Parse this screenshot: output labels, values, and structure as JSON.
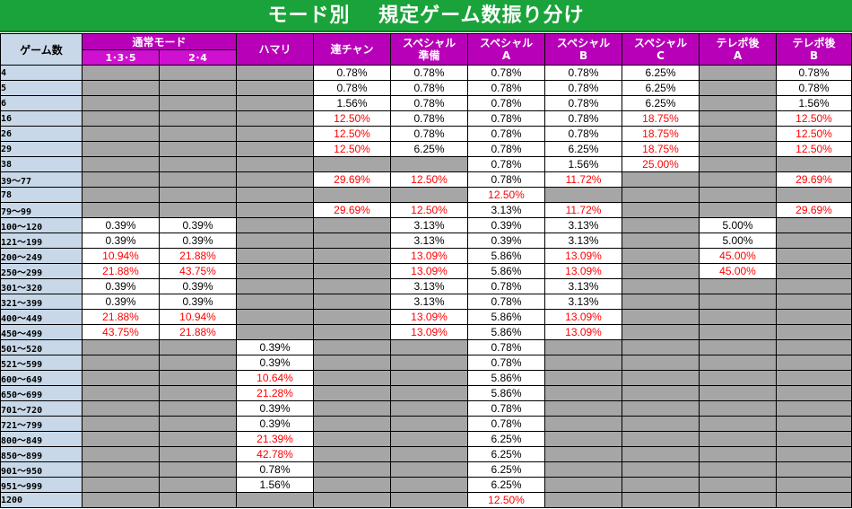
{
  "title": "モード別　 規定ゲーム数振り分け",
  "header": {
    "game_label": "ゲーム数",
    "normal_mode": "通常モード",
    "normal_sub": [
      "1･3･5",
      "2･4"
    ],
    "columns": [
      {
        "top": "ハマリ",
        "bottom": ""
      },
      {
        "top": "連チャン",
        "bottom": ""
      },
      {
        "top": "スペシャル",
        "bottom": "準備"
      },
      {
        "top": "スペシャル",
        "bottom": "A"
      },
      {
        "top": "スペシャル",
        "bottom": "B"
      },
      {
        "top": "スペシャル",
        "bottom": "C"
      },
      {
        "top": "テレポ後",
        "bottom": "A"
      },
      {
        "top": "テレポ後",
        "bottom": "B"
      }
    ]
  },
  "rows": [
    {
      "label": "4",
      "cells": [
        null,
        null,
        null,
        "0.78%",
        "0.78%",
        "0.78%",
        "0.78%",
        "6.25%",
        null,
        "0.78%"
      ]
    },
    {
      "label": "5",
      "cells": [
        null,
        null,
        null,
        "0.78%",
        "0.78%",
        "0.78%",
        "0.78%",
        "6.25%",
        null,
        "0.78%"
      ]
    },
    {
      "label": "6",
      "cells": [
        null,
        null,
        null,
        "1.56%",
        "0.78%",
        "0.78%",
        "0.78%",
        "6.25%",
        null,
        "1.56%"
      ]
    },
    {
      "label": "16",
      "cells": [
        null,
        null,
        null,
        "12.50%",
        "0.78%",
        "0.78%",
        "0.78%",
        "18.75%",
        null,
        "12.50%"
      ]
    },
    {
      "label": "26",
      "cells": [
        null,
        null,
        null,
        "12.50%",
        "0.78%",
        "0.78%",
        "0.78%",
        "18.75%",
        null,
        "12.50%"
      ]
    },
    {
      "label": "29",
      "cells": [
        null,
        null,
        null,
        "12.50%",
        "6.25%",
        "0.78%",
        "6.25%",
        "18.75%",
        null,
        "12.50%"
      ]
    },
    {
      "label": "38",
      "cells": [
        null,
        null,
        null,
        null,
        null,
        "0.78%",
        "1.56%",
        "25.00%",
        null,
        null
      ]
    },
    {
      "label": "39〜77",
      "cells": [
        null,
        null,
        null,
        "29.69%",
        "12.50%",
        "0.78%",
        "11.72%",
        null,
        null,
        "29.69%"
      ]
    },
    {
      "label": "78",
      "cells": [
        null,
        null,
        null,
        null,
        null,
        "12.50%",
        null,
        null,
        null,
        null
      ]
    },
    {
      "label": "79〜99",
      "cells": [
        null,
        null,
        null,
        "29.69%",
        "12.50%",
        "3.13%",
        "11.72%",
        null,
        null,
        "29.69%"
      ]
    },
    {
      "label": "100〜120",
      "cells": [
        "0.39%",
        "0.39%",
        null,
        null,
        "3.13%",
        "0.39%",
        "3.13%",
        null,
        "5.00%",
        null
      ]
    },
    {
      "label": "121〜199",
      "cells": [
        "0.39%",
        "0.39%",
        null,
        null,
        "3.13%",
        "0.39%",
        "3.13%",
        null,
        "5.00%",
        null
      ]
    },
    {
      "label": "200〜249",
      "cells": [
        "10.94%",
        "21.88%",
        null,
        null,
        "13.09%",
        "5.86%",
        "13.09%",
        null,
        "45.00%",
        null
      ]
    },
    {
      "label": "250〜299",
      "cells": [
        "21.88%",
        "43.75%",
        null,
        null,
        "13.09%",
        "5.86%",
        "13.09%",
        null,
        "45.00%",
        null
      ]
    },
    {
      "label": "301〜320",
      "cells": [
        "0.39%",
        "0.39%",
        null,
        null,
        "3.13%",
        "0.78%",
        "3.13%",
        null,
        null,
        null
      ]
    },
    {
      "label": "321〜399",
      "cells": [
        "0.39%",
        "0.39%",
        null,
        null,
        "3.13%",
        "0.78%",
        "3.13%",
        null,
        null,
        null
      ]
    },
    {
      "label": "400〜449",
      "cells": [
        "21.88%",
        "10.94%",
        null,
        null,
        "13.09%",
        "5.86%",
        "13.09%",
        null,
        null,
        null
      ]
    },
    {
      "label": "450〜499",
      "cells": [
        "43.75%",
        "21.88%",
        null,
        null,
        "13.09%",
        "5.86%",
        "13.09%",
        null,
        null,
        null
      ]
    },
    {
      "label": "501〜520",
      "cells": [
        null,
        null,
        "0.39%",
        null,
        null,
        "0.78%",
        null,
        null,
        null,
        null
      ]
    },
    {
      "label": "521〜599",
      "cells": [
        null,
        null,
        "0.39%",
        null,
        null,
        "0.78%",
        null,
        null,
        null,
        null
      ]
    },
    {
      "label": "600〜649",
      "cells": [
        null,
        null,
        "10.64%",
        null,
        null,
        "5.86%",
        null,
        null,
        null,
        null
      ]
    },
    {
      "label": "650〜699",
      "cells": [
        null,
        null,
        "21.28%",
        null,
        null,
        "5.86%",
        null,
        null,
        null,
        null
      ]
    },
    {
      "label": "701〜720",
      "cells": [
        null,
        null,
        "0.39%",
        null,
        null,
        "0.78%",
        null,
        null,
        null,
        null
      ]
    },
    {
      "label": "721〜799",
      "cells": [
        null,
        null,
        "0.39%",
        null,
        null,
        "0.78%",
        null,
        null,
        null,
        null
      ]
    },
    {
      "label": "800〜849",
      "cells": [
        null,
        null,
        "21.39%",
        null,
        null,
        "6.25%",
        null,
        null,
        null,
        null
      ]
    },
    {
      "label": "850〜899",
      "cells": [
        null,
        null,
        "42.78%",
        null,
        null,
        "6.25%",
        null,
        null,
        null,
        null
      ]
    },
    {
      "label": "901〜950",
      "cells": [
        null,
        null,
        "0.78%",
        null,
        null,
        "6.25%",
        null,
        null,
        null,
        null
      ]
    },
    {
      "label": "951〜999",
      "cells": [
        null,
        null,
        "1.56%",
        null,
        null,
        "6.25%",
        null,
        null,
        null,
        null
      ]
    },
    {
      "label": "1200",
      "cells": [
        null,
        null,
        null,
        null,
        null,
        "12.50%",
        null,
        null,
        null,
        null
      ]
    }
  ],
  "colors": {
    "title_bg": "#1aa33a",
    "header_bg": "#b800b8",
    "label_bg": "#c8d8e8",
    "empty_bg": "#a6a6a6",
    "highlight_text": "#ff0000"
  }
}
